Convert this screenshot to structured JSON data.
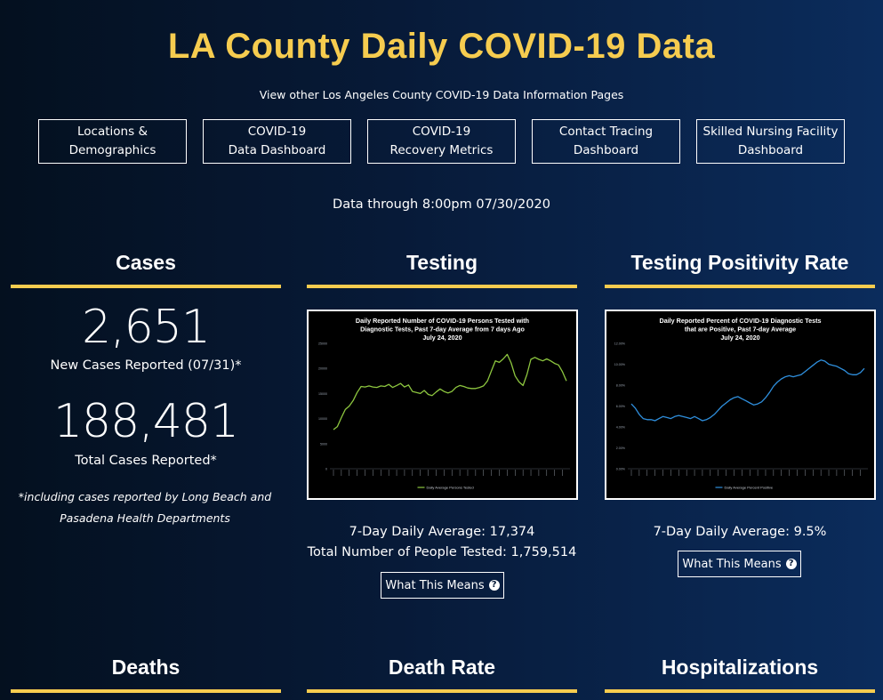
{
  "header": {
    "title": "LA County Daily COVID-19 Data",
    "subtitle": "View other Los Angeles County COVID-19 Data Information Pages",
    "data_through": "Data through 8:00pm 07/30/2020"
  },
  "nav": [
    {
      "label": "Locations &\nDemographics"
    },
    {
      "label": "COVID-19\nData Dashboard"
    },
    {
      "label": "COVID-19\nRecovery Metrics"
    },
    {
      "label": "Contact Tracing\nDashboard"
    },
    {
      "label": "Skilled Nursing Facility\nDashboard"
    }
  ],
  "cases": {
    "heading": "Cases",
    "new_cases": "2,651",
    "new_cases_label": "New Cases Reported (07/31)*",
    "total_cases": "188,481",
    "total_cases_label": "Total Cases Reported*",
    "footnote": "*including cases reported by Long Beach and Pasadena Health Departments"
  },
  "testing": {
    "heading": "Testing",
    "avg": "7-Day Daily Average: 17,374",
    "total": "Total Number of People Tested: 1,759,514",
    "button": "What This Means"
  },
  "positivity": {
    "heading": "Testing Positivity Rate",
    "avg": "7-Day Daily Average: 9.5%",
    "button": "What This Means"
  },
  "lower_sections": {
    "deaths": "Deaths",
    "death_rate": "Death Rate",
    "hospitalizations": "Hospitalizations"
  },
  "colors": {
    "accent": "#f6cc4f",
    "testing_line": "#8dc63f",
    "positivity_line": "#2f8fdd"
  },
  "chart_data": [
    {
      "type": "line",
      "title": "Daily Reported Number of COVID-19 Persons Tested with Diagnostic Tests, Past 7-day Average from 7 days Ago",
      "subtitle": "July 24, 2020",
      "y_ticks": [
        "0",
        "5000",
        "10000",
        "15000",
        "20000",
        "25000"
      ],
      "ylim": [
        0,
        25000
      ],
      "legend": "Daily Average Persons Tested",
      "series": [
        {
          "name": "Daily Average Persons Tested",
          "values": [
            7800,
            8400,
            10200,
            11800,
            12500,
            13600,
            15200,
            16400,
            16300,
            16500,
            16300,
            16200,
            16500,
            16400,
            16800,
            16200,
            16600,
            17000,
            16300,
            16700,
            15400,
            15200,
            15000,
            15600,
            14800,
            14600,
            15300,
            15900,
            15400,
            15100,
            15400,
            16200,
            16600,
            16400,
            16100,
            16000,
            16000,
            16200,
            16500,
            17500,
            19500,
            21500,
            21200,
            21900,
            22800,
            21100,
            18500,
            17300,
            16600,
            18800,
            21800,
            22200,
            21800,
            21500,
            21900,
            21500,
            21000,
            20700,
            19300,
            17500
          ]
        }
      ]
    },
    {
      "type": "line",
      "title": "Daily Reported Percent of COVID-19 Diagnostic Tests that are Positive, Past 7-day Average",
      "subtitle": "July 24, 2020",
      "y_ticks": [
        "0.00%",
        "2.00%",
        "4.00%",
        "6.00%",
        "8.00%",
        "10.00%",
        "12.00%"
      ],
      "ylim": [
        0,
        12
      ],
      "legend": "Daily Average Percent Positive",
      "series": [
        {
          "name": "Daily Average Percent Positive",
          "values": [
            6.2,
            5.8,
            5.2,
            4.8,
            4.7,
            4.7,
            4.6,
            4.8,
            5.0,
            4.9,
            4.8,
            5.0,
            5.1,
            5.0,
            4.9,
            4.8,
            5.0,
            4.8,
            4.6,
            4.7,
            4.9,
            5.2,
            5.6,
            6.0,
            6.3,
            6.6,
            6.8,
            6.9,
            6.7,
            6.5,
            6.3,
            6.1,
            6.2,
            6.4,
            6.8,
            7.3,
            7.9,
            8.3,
            8.6,
            8.8,
            8.9,
            8.8,
            8.9,
            9.0,
            9.3,
            9.6,
            9.9,
            10.2,
            10.4,
            10.3,
            10.0,
            9.9,
            9.8,
            9.6,
            9.4,
            9.1,
            9.0,
            9.0,
            9.2,
            9.6
          ]
        }
      ]
    }
  ]
}
